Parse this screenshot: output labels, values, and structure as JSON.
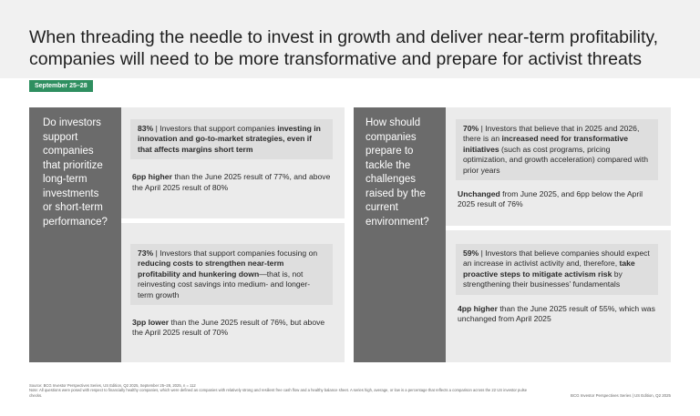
{
  "header": {
    "title_line1": "When threading the needle to invest in growth and deliver near-term profitability,",
    "title_line2": "companies will need to be more transformative and prepare for activist threats",
    "date_badge": "September 25–28"
  },
  "left": {
    "question": "Do investors support companies that prioritize long-term investments or short-term performance?",
    "card1": {
      "stat_pct": "83%",
      "stat_pre": " | Investors that support companies ",
      "stat_bold": "investing in innovation and go-to-market strategies, even if that affects margins short term",
      "note_bold": "6pp higher",
      "note_rest": " than the June 2025 result of 77%, and above the April 2025 result of 80%"
    },
    "card2": {
      "stat_pct": "73%",
      "stat_pre": " | Investors that support companies focusing on ",
      "stat_bold": "reducing costs to strengthen near-term profitability and hunkering down",
      "stat_post": "—that is, not reinvesting cost savings into medium- and longer-term growth",
      "note_bold": "3pp lower",
      "note_rest": " than the June 2025 result of 76%, but above the April 2025 result of 70%"
    }
  },
  "right": {
    "question": "How should companies prepare to tackle the challenges raised by the current environment?",
    "card1": {
      "stat_pct": "70%",
      "stat_pre": " | Investors that believe that in 2025 and 2026, there is an ",
      "stat_bold": "increased need for transformative initiatives",
      "stat_post": " (such as cost programs, pricing optimization, and growth acceleration) compared with prior years",
      "note_bold": "Unchanged",
      "note_rest": " from June 2025, and 6pp below the April 2025 result of 76%"
    },
    "card2": {
      "stat_pct": "59%",
      "stat_pre": " | Investors that believe companies should expect an increase in activist activity and, therefore, ",
      "stat_bold": "take proactive steps to mitigate activism risk",
      "stat_post": " by strengthening their businesses’ fundamentals",
      "note_bold": "4pp higher",
      "note_rest": " than the June 2025 result of 55%, which was unchanged from April 2025"
    }
  },
  "footer": {
    "source": "Source: BCG Investor Perspectives Series, US Edition, Q2 2025, September 25–28, 2025, n = 112",
    "note": "Note: All questions were posed with respect to financially healthy companies, which were defined as companies with relatively strong and resilient free cash flow and a healthy balance sheet. A series high, average, or low is a percentage that reflects a comparison across the 22 US investor pulse checks.",
    "right": "BCG Investor Perspectives Series | US Edition, Q2 2025"
  }
}
